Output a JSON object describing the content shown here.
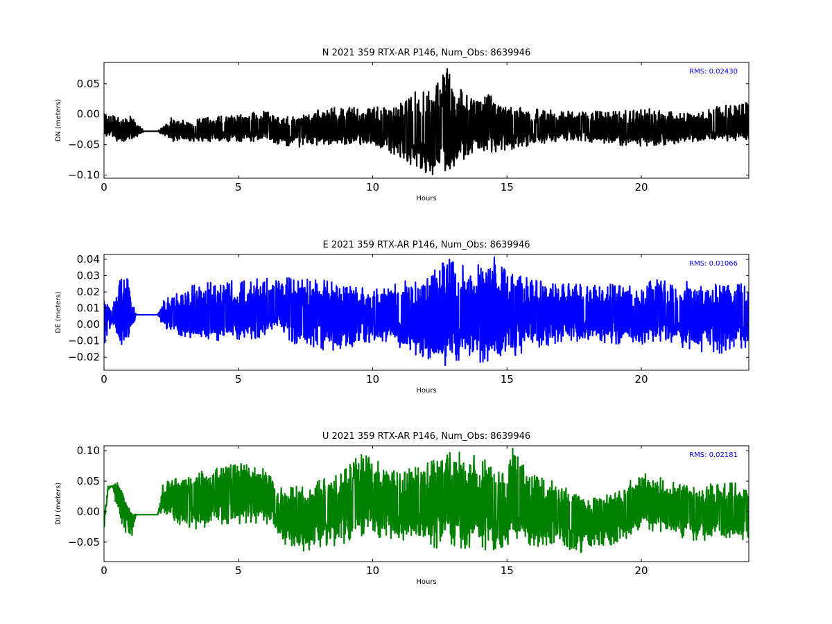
{
  "chart_data": [
    {
      "type": "line",
      "title": "N 2021 359 RTX-AR  P146, Num_Obs: 8639946",
      "xlabel": "Hours",
      "ylabel": "DN (meters)",
      "xlim": [
        0,
        24
      ],
      "ylim": [
        -0.105,
        0.085
      ],
      "xticks": [
        0,
        5,
        10,
        15,
        20
      ],
      "xtick_labels": [
        "0",
        "5",
        "10",
        "15",
        "20"
      ],
      "yticks": [
        0.05,
        0.0,
        -0.05,
        -0.1
      ],
      "ytick_labels": [
        "0.05",
        "0.00",
        "−0.05",
        "−0.10"
      ],
      "rms_label": "RMS:  0.02430",
      "color": "#000000",
      "grid": false,
      "series": [
        {
          "x": [
            0,
            0.5,
            1.0,
            1.5,
            2.0,
            2.5,
            3,
            4,
            5,
            6,
            7,
            8,
            9,
            10,
            11,
            11.5,
            12,
            12.5,
            12.8,
            13,
            13.5,
            14,
            15,
            16,
            17,
            18,
            19,
            20,
            21,
            22,
            23,
            24
          ],
          "center": [
            -0.02,
            -0.025,
            -0.025,
            -0.028,
            -0.028,
            -0.025,
            -0.025,
            -0.025,
            -0.02,
            -0.02,
            -0.025,
            -0.025,
            -0.022,
            -0.022,
            -0.02,
            -0.02,
            -0.03,
            -0.035,
            -0.02,
            -0.03,
            -0.02,
            -0.02,
            -0.02,
            -0.025,
            -0.02,
            -0.022,
            -0.025,
            -0.025,
            -0.025,
            -0.025,
            -0.02,
            -0.02
          ],
          "upper": [
            0.008,
            -0.005,
            -0.002,
            -0.028,
            -0.028,
            -0.005,
            -0.01,
            -0.005,
            0.0,
            0.005,
            -0.005,
            0.01,
            0.012,
            0.01,
            0.02,
            0.045,
            0.045,
            0.06,
            0.08,
            0.05,
            0.035,
            0.04,
            0.015,
            0.01,
            0.005,
            0.005,
            0.005,
            0.01,
            0.005,
            0.0,
            0.015,
            0.02
          ],
          "lower": [
            -0.035,
            -0.045,
            -0.045,
            -0.028,
            -0.028,
            -0.045,
            -0.045,
            -0.045,
            -0.045,
            -0.045,
            -0.055,
            -0.05,
            -0.05,
            -0.05,
            -0.07,
            -0.09,
            -0.1,
            -0.1,
            -0.105,
            -0.09,
            -0.07,
            -0.065,
            -0.06,
            -0.05,
            -0.045,
            -0.045,
            -0.05,
            -0.055,
            -0.05,
            -0.045,
            -0.045,
            -0.045
          ]
        }
      ]
    },
    {
      "type": "line",
      "title": "E 2021 359 RTX-AR  P146, Num_Obs: 8639946",
      "xlabel": "Hours",
      "ylabel": "DE (meters)",
      "xlim": [
        0,
        24
      ],
      "ylim": [
        -0.028,
        0.043
      ],
      "xticks": [
        0,
        5,
        10,
        15,
        20
      ],
      "xtick_labels": [
        "0",
        "5",
        "10",
        "15",
        "20"
      ],
      "yticks": [
        0.04,
        0.03,
        0.02,
        0.01,
        0.0,
        -0.01,
        -0.02
      ],
      "ytick_labels": [
        "0.04",
        "0.03",
        "0.02",
        "0.01",
        "0.00",
        "−0.01",
        "−0.02"
      ],
      "rms_label": "RMS:  0.01066",
      "color": "#0000ff",
      "grid": false,
      "series": [
        {
          "x": [
            0,
            0.3,
            0.6,
            0.9,
            1.2,
            1.5,
            2.0,
            2.2,
            3,
            4,
            5,
            6,
            6.5,
            7,
            8,
            9,
            10,
            11,
            12,
            12.8,
            13.5,
            14.5,
            15,
            16,
            17,
            18,
            19,
            20,
            21,
            22,
            23,
            24
          ],
          "center": [
            0.007,
            0.007,
            0.007,
            0.007,
            0.006,
            0.006,
            0.006,
            0.006,
            0.006,
            0.006,
            0.006,
            0.01,
            0.01,
            0.006,
            0.006,
            0.004,
            0.006,
            0.007,
            0.006,
            0.007,
            0.006,
            0.007,
            0.007,
            0.007,
            0.007,
            0.007,
            0.007,
            0.006,
            0.007,
            0.006,
            0.006,
            0.006
          ],
          "upper": [
            0.015,
            0.01,
            0.028,
            0.028,
            0.006,
            0.006,
            0.006,
            0.015,
            0.024,
            0.026,
            0.028,
            0.028,
            0.032,
            0.028,
            0.028,
            0.024,
            0.022,
            0.026,
            0.03,
            0.042,
            0.035,
            0.042,
            0.032,
            0.028,
            0.026,
            0.025,
            0.025,
            0.025,
            0.03,
            0.025,
            0.025,
            0.025
          ],
          "lower": [
            -0.018,
            0.0,
            -0.015,
            -0.012,
            0.006,
            0.006,
            0.006,
            -0.002,
            -0.008,
            -0.01,
            -0.01,
            -0.008,
            0.0,
            -0.012,
            -0.015,
            -0.018,
            -0.01,
            -0.015,
            -0.022,
            -0.027,
            -0.022,
            -0.025,
            -0.022,
            -0.015,
            -0.012,
            -0.01,
            -0.012,
            -0.012,
            -0.01,
            -0.018,
            -0.018,
            -0.015
          ]
        }
      ]
    },
    {
      "type": "line",
      "title": "U 2021 359 RTX-AR  P146, Num_Obs: 8639946",
      "xlabel": "Hours",
      "ylabel": "DU (meters)",
      "xlim": [
        0,
        24
      ],
      "ylim": [
        -0.082,
        0.108
      ],
      "xticks": [
        0,
        5,
        10,
        15,
        20
      ],
      "xtick_labels": [
        "0",
        "5",
        "10",
        "15",
        "20"
      ],
      "yticks": [
        0.1,
        0.05,
        0.0,
        -0.05
      ],
      "ytick_labels": [
        "0.10",
        "0.05",
        "0.00",
        "−0.05"
      ],
      "rms_label": "RMS:  0.02181",
      "color": "#008000",
      "grid": false,
      "series": [
        {
          "x": [
            0,
            0.15,
            0.3,
            0.5,
            0.7,
            1.0,
            1.2,
            1.5,
            2.0,
            2.2,
            3,
            4,
            5,
            6,
            6.5,
            7,
            8,
            9,
            9.5,
            10,
            11,
            12,
            13,
            14,
            15,
            15.2,
            16,
            17,
            17.5,
            18,
            19,
            20,
            21,
            22,
            23,
            24
          ],
          "center": [
            -0.02,
            0.04,
            0.042,
            0.042,
            0.01,
            -0.01,
            -0.005,
            -0.005,
            -0.005,
            0.02,
            0.02,
            0.025,
            0.03,
            0.03,
            0.0,
            -0.01,
            0.0,
            0.01,
            0.03,
            0.03,
            0.01,
            0.02,
            0.02,
            0.02,
            0.0,
            0.01,
            0.0,
            0.0,
            0.0,
            -0.01,
            -0.01,
            0.02,
            0.01,
            0.0,
            0.0,
            0.0
          ],
          "upper": [
            -0.01,
            0.042,
            0.042,
            0.048,
            0.03,
            0.0,
            -0.005,
            -0.005,
            -0.005,
            0.048,
            0.06,
            0.07,
            0.08,
            0.07,
            0.04,
            0.04,
            0.055,
            0.07,
            0.095,
            0.09,
            0.065,
            0.08,
            0.1,
            0.09,
            0.06,
            0.108,
            0.06,
            0.05,
            0.03,
            0.02,
            0.03,
            0.07,
            0.05,
            0.04,
            0.05,
            0.045
          ],
          "lower": [
            -0.035,
            0.035,
            0.042,
            0.0,
            -0.03,
            -0.05,
            -0.005,
            -0.005,
            -0.005,
            0.0,
            -0.03,
            -0.03,
            -0.02,
            -0.02,
            -0.04,
            -0.07,
            -0.06,
            -0.055,
            -0.04,
            -0.04,
            -0.05,
            -0.06,
            -0.06,
            -0.065,
            -0.06,
            -0.04,
            -0.06,
            -0.05,
            -0.082,
            -0.06,
            -0.055,
            -0.03,
            -0.04,
            -0.05,
            -0.05,
            -0.045
          ]
        }
      ]
    }
  ]
}
